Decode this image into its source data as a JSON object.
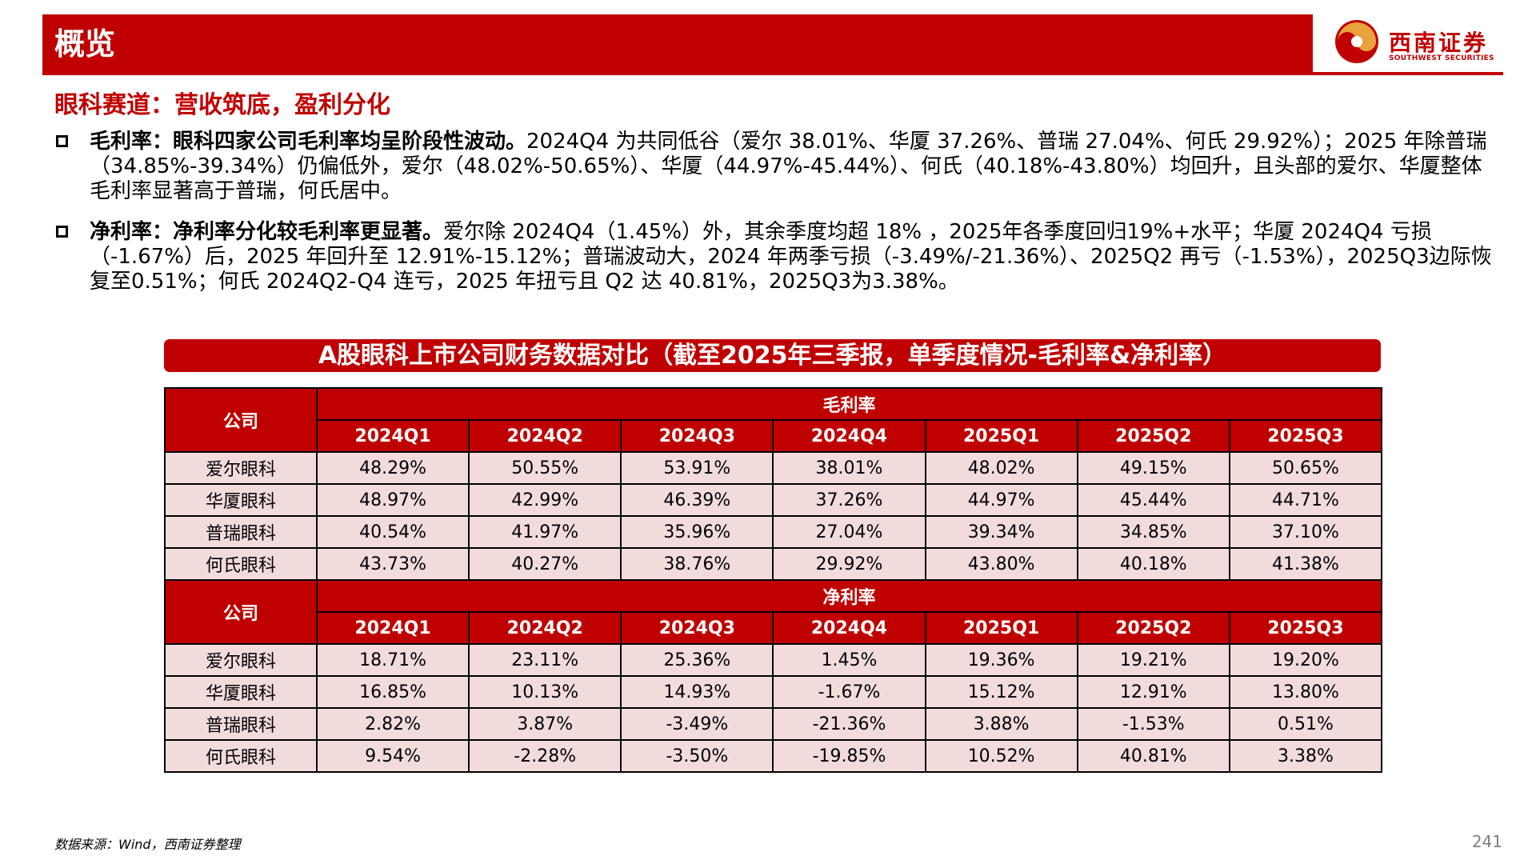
{
  "header": {
    "title": "概览"
  },
  "logo": {
    "cn": "西南证券",
    "en": "SOUTHWEST SECURITIES"
  },
  "section_title": "眼科赛道：营收筑底，盈利分化",
  "bullets": [
    {
      "lead": "毛利率：眼科四家公司毛利率均呈阶段性波动。",
      "body": "2024Q4 为共同低谷（爱尔 38.01%、华厦 37.26%、普瑞 27.04%、何氏 29.92%）；2025 年除普瑞（34.85%-39.34%）仍偏低外，爱尔（48.02%-50.65%）、华厦（44.97%-45.44%）、何氏（40.18%-43.80%）均回升，且头部的爱尔、华厦整体毛利率显著高于普瑞，何氏居中。"
    },
    {
      "lead": "净利率：净利率分化较毛利率更显著。",
      "body": "爱尔除 2024Q4（1.45%）外，其余季度均超 18% ，2025年各季度回归19%+水平；华厦 2024Q4 亏损（-1.67%）后，2025 年回升至 12.91%-15.12%；普瑞波动大，2024 年两季亏损（-3.49%/-21.36%）、2025Q2 再亏（-1.53%），2025Q3边际恢复至0.51%；何氏 2024Q2-Q4 连亏，2025 年扭亏且 Q2 达 40.81%，2025Q3为3.38%。"
    }
  ],
  "table": {
    "title": "A股眼科上市公司财务数据对比（截至2025年三季报，单季度情况-毛利率&净利率）",
    "company_label": "公司",
    "quarters": [
      "2024Q1",
      "2024Q2",
      "2024Q3",
      "2024Q4",
      "2025Q1",
      "2025Q2",
      "2025Q3"
    ],
    "sections": [
      {
        "metric": "毛利率",
        "rows": [
          {
            "company": "爱尔眼科",
            "values": [
              "48.29%",
              "50.55%",
              "53.91%",
              "38.01%",
              "48.02%",
              "49.15%",
              "50.65%"
            ]
          },
          {
            "company": "华厦眼科",
            "values": [
              "48.97%",
              "42.99%",
              "46.39%",
              "37.26%",
              "44.97%",
              "45.44%",
              "44.71%"
            ]
          },
          {
            "company": "普瑞眼科",
            "values": [
              "40.54%",
              "41.97%",
              "35.96%",
              "27.04%",
              "39.34%",
              "34.85%",
              "37.10%"
            ]
          },
          {
            "company": "何氏眼科",
            "values": [
              "43.73%",
              "40.27%",
              "38.76%",
              "29.92%",
              "43.80%",
              "40.18%",
              "41.38%"
            ]
          }
        ]
      },
      {
        "metric": "净利率",
        "rows": [
          {
            "company": "爱尔眼科",
            "values": [
              "18.71%",
              "23.11%",
              "25.36%",
              "1.45%",
              "19.36%",
              "19.21%",
              "19.20%"
            ]
          },
          {
            "company": "华厦眼科",
            "values": [
              "16.85%",
              "10.13%",
              "14.93%",
              "-1.67%",
              "15.12%",
              "12.91%",
              "13.80%"
            ]
          },
          {
            "company": "普瑞眼科",
            "values": [
              "2.82%",
              "3.87%",
              "-3.49%",
              "-21.36%",
              "3.88%",
              "-1.53%",
              "0.51%"
            ]
          },
          {
            "company": "何氏眼科",
            "values": [
              "9.54%",
              "-2.28%",
              "-3.50%",
              "-19.85%",
              "10.52%",
              "40.81%",
              "3.38%"
            ]
          }
        ]
      }
    ]
  },
  "footer": {
    "source": "数据来源：Wind，西南证券整理",
    "page_number": "241"
  },
  "colors": {
    "brand_red": "#c00000",
    "cell_pink": "#f2dcdb",
    "logo_gold": "#e8a33d"
  }
}
